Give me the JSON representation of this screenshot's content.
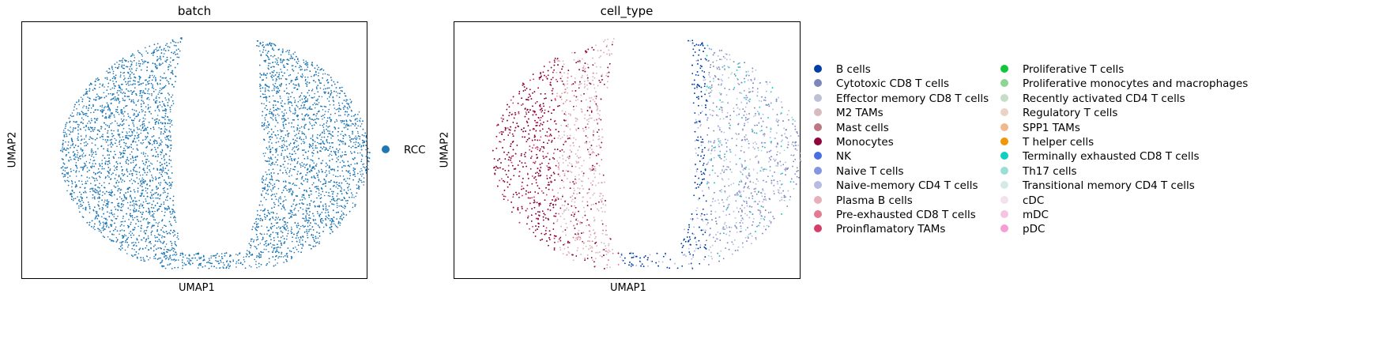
{
  "chart_data": [
    {
      "type": "scatter",
      "title": "batch",
      "xlabel": "UMAP1",
      "ylabel": "UMAP2",
      "grid": false,
      "legend_placement": "right",
      "series": [
        {
          "name": "RCC",
          "color": "#1f77b4"
        }
      ]
    },
    {
      "type": "scatter",
      "title": "cell_type",
      "xlabel": "UMAP1",
      "ylabel": "UMAP2",
      "grid": false,
      "legend_placement": "right",
      "series": [
        {
          "name": "B cells",
          "color": "#023fa5"
        },
        {
          "name": "Cytotoxic CD8 T cells",
          "color": "#7d87b9"
        },
        {
          "name": "Effector memory CD8 T cells",
          "color": "#bec1d4"
        },
        {
          "name": "M2 TAMs",
          "color": "#d6bcc0"
        },
        {
          "name": "Mast cells",
          "color": "#bb7784"
        },
        {
          "name": "Monocytes",
          "color": "#8e063b"
        },
        {
          "name": "NK",
          "color": "#4a6fe3"
        },
        {
          "name": "Naive T cells",
          "color": "#8595e1"
        },
        {
          "name": "Naive-memory CD4 T cells",
          "color": "#b5bbe3"
        },
        {
          "name": "Plasma B cells",
          "color": "#e6afb9"
        },
        {
          "name": "Pre-exhausted CD8 T cells",
          "color": "#e07b91"
        },
        {
          "name": "Proinflamatory TAMs",
          "color": "#d33f6a"
        },
        {
          "name": "Proliferative T cells",
          "color": "#11c638"
        },
        {
          "name": "Proliferative monocytes and macrophages",
          "color": "#8dd593"
        },
        {
          "name": "Recently activated CD4 T cells",
          "color": "#c6dec7"
        },
        {
          "name": "Regulatory T cells",
          "color": "#ead3c6"
        },
        {
          "name": "SPP1 TAMs",
          "color": "#f0b98d"
        },
        {
          "name": "T helper cells",
          "color": "#ef9708"
        },
        {
          "name": "Terminally exhausted CD8 T cells",
          "color": "#0fcfc0"
        },
        {
          "name": "Th17 cells",
          "color": "#9cded6"
        },
        {
          "name": "Transitional memory CD4 T cells",
          "color": "#d5eae7"
        },
        {
          "name": "cDC",
          "color": "#f3e1eb"
        },
        {
          "name": "mDC",
          "color": "#f6c4e1"
        },
        {
          "name": "pDC",
          "color": "#f79cd4"
        }
      ]
    }
  ]
}
